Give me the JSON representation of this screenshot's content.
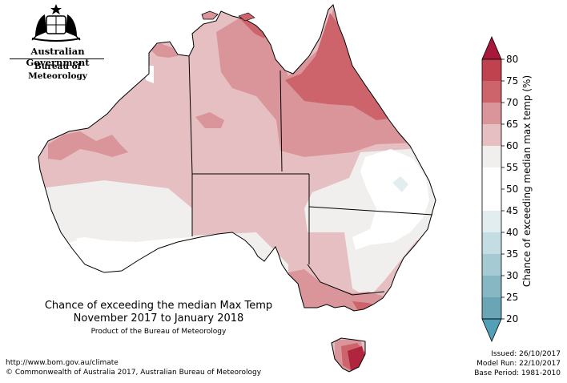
{
  "branding": {
    "government": "Australian Government",
    "bureau": "Bureau of Meteorology"
  },
  "map": {
    "title": "Chance of exceeding the median Max Temp",
    "period": "November 2017 to January 2018",
    "product": "Product of the Bureau of Meteorology"
  },
  "legend": {
    "label": "Chance of exceeding median max temp (%)",
    "ticks": [
      "80",
      "75",
      "70",
      "65",
      "60",
      "55",
      "50",
      "45",
      "40",
      "35",
      "30",
      "25",
      "20"
    ],
    "bands": [
      {
        "range": "75-80",
        "color": "#c1424f"
      },
      {
        "range": "70-75",
        "color": "#cd646c"
      },
      {
        "range": "65-70",
        "color": "#d9959a"
      },
      {
        "range": "60-65",
        "color": "#e6bfc2"
      },
      {
        "range": "55-60",
        "color": "#f0efed"
      },
      {
        "range": "50-55",
        "color": "#ffffff"
      },
      {
        "range": "45-50",
        "color": "#ffffff"
      },
      {
        "range": "40-45",
        "color": "#e2edf0"
      },
      {
        "range": "35-40",
        "color": "#c4dde2"
      },
      {
        "range": "30-35",
        "color": "#a6cad3"
      },
      {
        "range": "25-30",
        "color": "#88b7c4"
      },
      {
        "range": "20-25",
        "color": "#6aa5b6"
      }
    ],
    "top_arrow_color": "#a8183a",
    "bottom_arrow_color": "#52a0b8"
  },
  "footer": {
    "url": "http://www.bom.gov.au/climate",
    "copyright": "© Commonwealth of Australia 2017, Australian Bureau of Meteorology",
    "issued": "Issued: 26/10/2017",
    "model_run": "Model Run: 22/10/2017",
    "base_period": "Base Period: 1981-2010"
  },
  "colors": {
    "border": "#000000",
    "pct_80_plus": "#b0243d"
  }
}
